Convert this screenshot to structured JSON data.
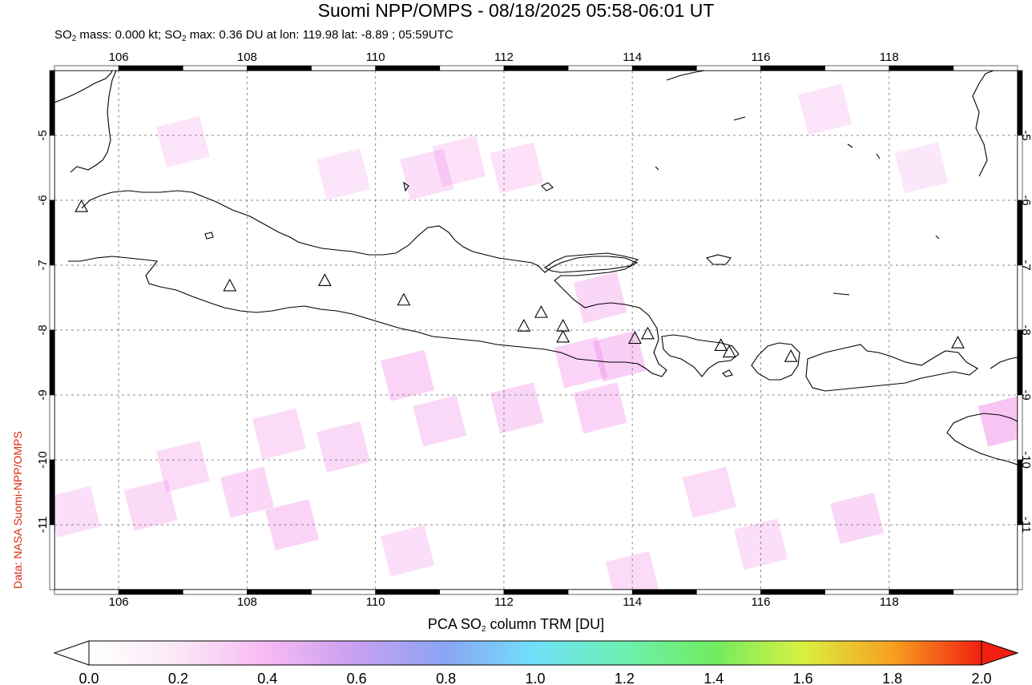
{
  "header": {
    "title": "Suomi NPP/OMPS - 08/18/2025 05:58-06:01 UT",
    "subtitle_prefix": "SO",
    "subtitle_sub1": "2",
    "subtitle_mid": " mass: 0.000 kt; SO",
    "subtitle_sub2": "2",
    "subtitle_rest": " max: 0.36 DU at lon: 119.98 lat: -8.89 ; 05:59UTC"
  },
  "credit": "Data: NASA Suomi-NPP/OMPS",
  "map": {
    "lon_ticks": [
      "106",
      "108",
      "110",
      "112",
      "114",
      "116",
      "118"
    ],
    "lon_values": [
      106,
      108,
      110,
      112,
      114,
      116,
      118
    ],
    "lat_ticks": [
      "-5",
      "-6",
      "-7",
      "-8",
      "-9",
      "-10",
      "-11"
    ],
    "lat_values": [
      -5,
      -6,
      -7,
      -8,
      -9,
      -10,
      -11
    ],
    "lon_range": [
      105,
      120
    ],
    "lat_range": [
      -4,
      -12
    ],
    "grid": "dotted",
    "volcanoes": [
      {
        "lon": 105.42,
        "lat": -6.1
      },
      {
        "lon": 107.73,
        "lat": -7.32
      },
      {
        "lon": 109.21,
        "lat": -7.24
      },
      {
        "lon": 110.44,
        "lat": -7.54
      },
      {
        "lon": 112.31,
        "lat": -7.94
      },
      {
        "lon": 112.58,
        "lat": -7.73
      },
      {
        "lon": 112.92,
        "lat": -7.94
      },
      {
        "lon": 112.92,
        "lat": -8.11
      },
      {
        "lon": 114.04,
        "lat": -8.13
      },
      {
        "lon": 114.24,
        "lat": -8.06
      },
      {
        "lon": 115.38,
        "lat": -8.24
      },
      {
        "lon": 115.51,
        "lat": -8.34
      },
      {
        "lon": 116.47,
        "lat": -8.41
      },
      {
        "lon": 119.07,
        "lat": -8.2
      }
    ],
    "so2_pixels": [
      {
        "lon": 107.0,
        "lat": -5.1,
        "v": 0.08
      },
      {
        "lon": 110.8,
        "lat": -5.6,
        "v": 0.12
      },
      {
        "lon": 111.3,
        "lat": -5.4,
        "v": 0.1
      },
      {
        "lon": 109.5,
        "lat": -5.6,
        "v": 0.08
      },
      {
        "lon": 113.5,
        "lat": -7.5,
        "v": 0.18
      },
      {
        "lon": 113.2,
        "lat": -8.5,
        "v": 0.2
      },
      {
        "lon": 113.8,
        "lat": -8.4,
        "v": 0.22
      },
      {
        "lon": 110.5,
        "lat": -8.7,
        "v": 0.2
      },
      {
        "lon": 111.0,
        "lat": -9.4,
        "v": 0.16
      },
      {
        "lon": 112.2,
        "lat": -9.2,
        "v": 0.18
      },
      {
        "lon": 113.5,
        "lat": -9.2,
        "v": 0.2
      },
      {
        "lon": 108.5,
        "lat": -9.6,
        "v": 0.14
      },
      {
        "lon": 109.5,
        "lat": -9.8,
        "v": 0.16
      },
      {
        "lon": 108.0,
        "lat": -10.5,
        "v": 0.18
      },
      {
        "lon": 107.0,
        "lat": -10.1,
        "v": 0.14
      },
      {
        "lon": 106.5,
        "lat": -10.7,
        "v": 0.15
      },
      {
        "lon": 108.7,
        "lat": -11.0,
        "v": 0.2
      },
      {
        "lon": 110.5,
        "lat": -11.4,
        "v": 0.12
      },
      {
        "lon": 115.2,
        "lat": -10.5,
        "v": 0.14
      },
      {
        "lon": 116.0,
        "lat": -11.3,
        "v": 0.12
      },
      {
        "lon": 117.5,
        "lat": -10.9,
        "v": 0.18
      },
      {
        "lon": 119.8,
        "lat": -9.4,
        "v": 0.3
      },
      {
        "lon": 117.0,
        "lat": -4.6,
        "v": 0.08
      },
      {
        "lon": 118.5,
        "lat": -5.5,
        "v": 0.06
      },
      {
        "lon": 112.2,
        "lat": -5.5,
        "v": 0.1
      },
      {
        "lon": 105.3,
        "lat": -10.8,
        "v": 0.12
      },
      {
        "lon": 114.0,
        "lat": -11.8,
        "v": 0.14
      }
    ]
  },
  "colorbar": {
    "title_prefix": "PCA SO",
    "title_sub": "2",
    "title_rest": " column TRM [DU]",
    "ticks": [
      "0.0",
      "0.2",
      "0.4",
      "0.6",
      "0.8",
      "1.0",
      "1.2",
      "1.4",
      "1.6",
      "1.8",
      "2.0"
    ],
    "colors": [
      "#ffffff",
      "#fbe8f6",
      "#f7b8f3",
      "#c7a0f0",
      "#8aa4f4",
      "#70e0f8",
      "#6cf0b0",
      "#70ec60",
      "#d8f040",
      "#f8a020",
      "#f02010"
    ]
  }
}
